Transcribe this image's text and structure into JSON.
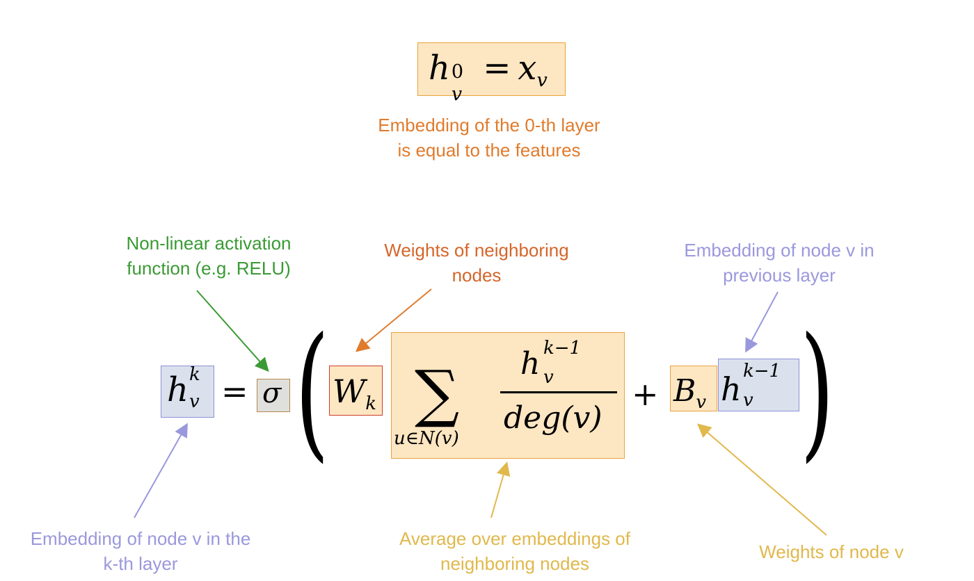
{
  "colors": {
    "orange": "#e07b2c",
    "red_orange": "#d4662a",
    "green": "#3a9a34",
    "lavender": "#9a98dc",
    "gold": "#e0b84c",
    "box_orange_fill": "#fde6c2",
    "box_orange_stroke": "#e7a33e",
    "box_blue_fill": "#dae1ec",
    "box_blue_stroke": "#8d8fd8",
    "box_red_fill": "#fde6c2",
    "box_red_stroke": "#cc3b2a",
    "box_sigma_fill": "#dfe0db",
    "box_sigma_stroke": "#b5884f"
  },
  "equation0": {
    "h": "h",
    "sup": "0",
    "sub": "v",
    "equals": "=",
    "x": "x",
    "x_sub": "v"
  },
  "equation_main": {
    "h": "h",
    "h_sup": "k",
    "h_sub": "v",
    "equals": "=",
    "sigma": "σ",
    "lparen": "(",
    "W": "W",
    "W_sub": "k",
    "sum": "∑",
    "sum_lower": "u∈N(v)",
    "num_h": "h",
    "num_sup": "k−1",
    "num_sub": "v",
    "denom": "deg(v)",
    "plus": "+",
    "B": "B",
    "B_sub": "v",
    "h2": "h",
    "h2_sup": "k−1",
    "h2_sub": "v",
    "rparen": ")"
  },
  "annotations": {
    "layer0": [
      "Embedding of the 0-th layer",
      "is equal to the features"
    ],
    "activation": [
      "Non-linear activation",
      "function (e.g. RELU)"
    ],
    "weights_neighbors": [
      "Weights of neighboring",
      "nodes"
    ],
    "prev_embedding": [
      "Embedding of node v in",
      "previous layer"
    ],
    "kth_embedding": [
      "Embedding of node v in the",
      "k-th layer"
    ],
    "average": [
      "Average over embeddings of",
      "neighboring nodes"
    ],
    "weights_node": [
      "Weights of node v"
    ]
  }
}
